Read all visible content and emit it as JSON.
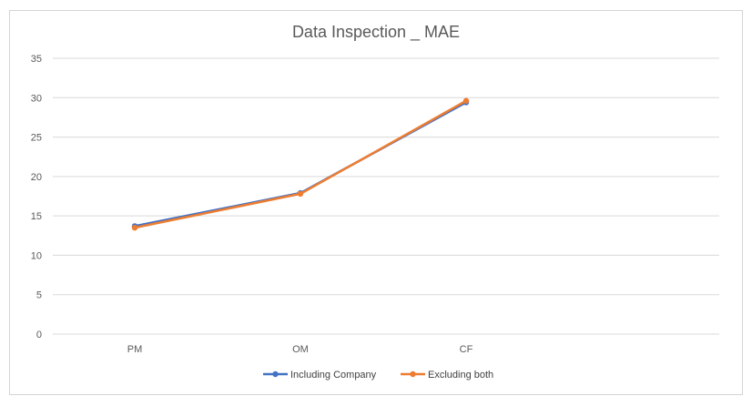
{
  "chart_data": {
    "type": "line",
    "title": "Data Inspection _ MAE",
    "xlabel": "",
    "ylabel": "",
    "categories": [
      "PM",
      "OM",
      "CF"
    ],
    "series": [
      {
        "name": "Including Company",
        "values": [
          13.7,
          17.9,
          29.4
        ],
        "color": "#4472C4"
      },
      {
        "name": "Excluding both",
        "values": [
          13.5,
          17.8,
          29.6
        ],
        "color": "#ED7D31"
      }
    ],
    "ylim": [
      0,
      35
    ],
    "yticks": [
      "0",
      "5",
      "10",
      "15",
      "20",
      "25",
      "30",
      "35"
    ],
    "grid": true,
    "legend": "bottom"
  }
}
